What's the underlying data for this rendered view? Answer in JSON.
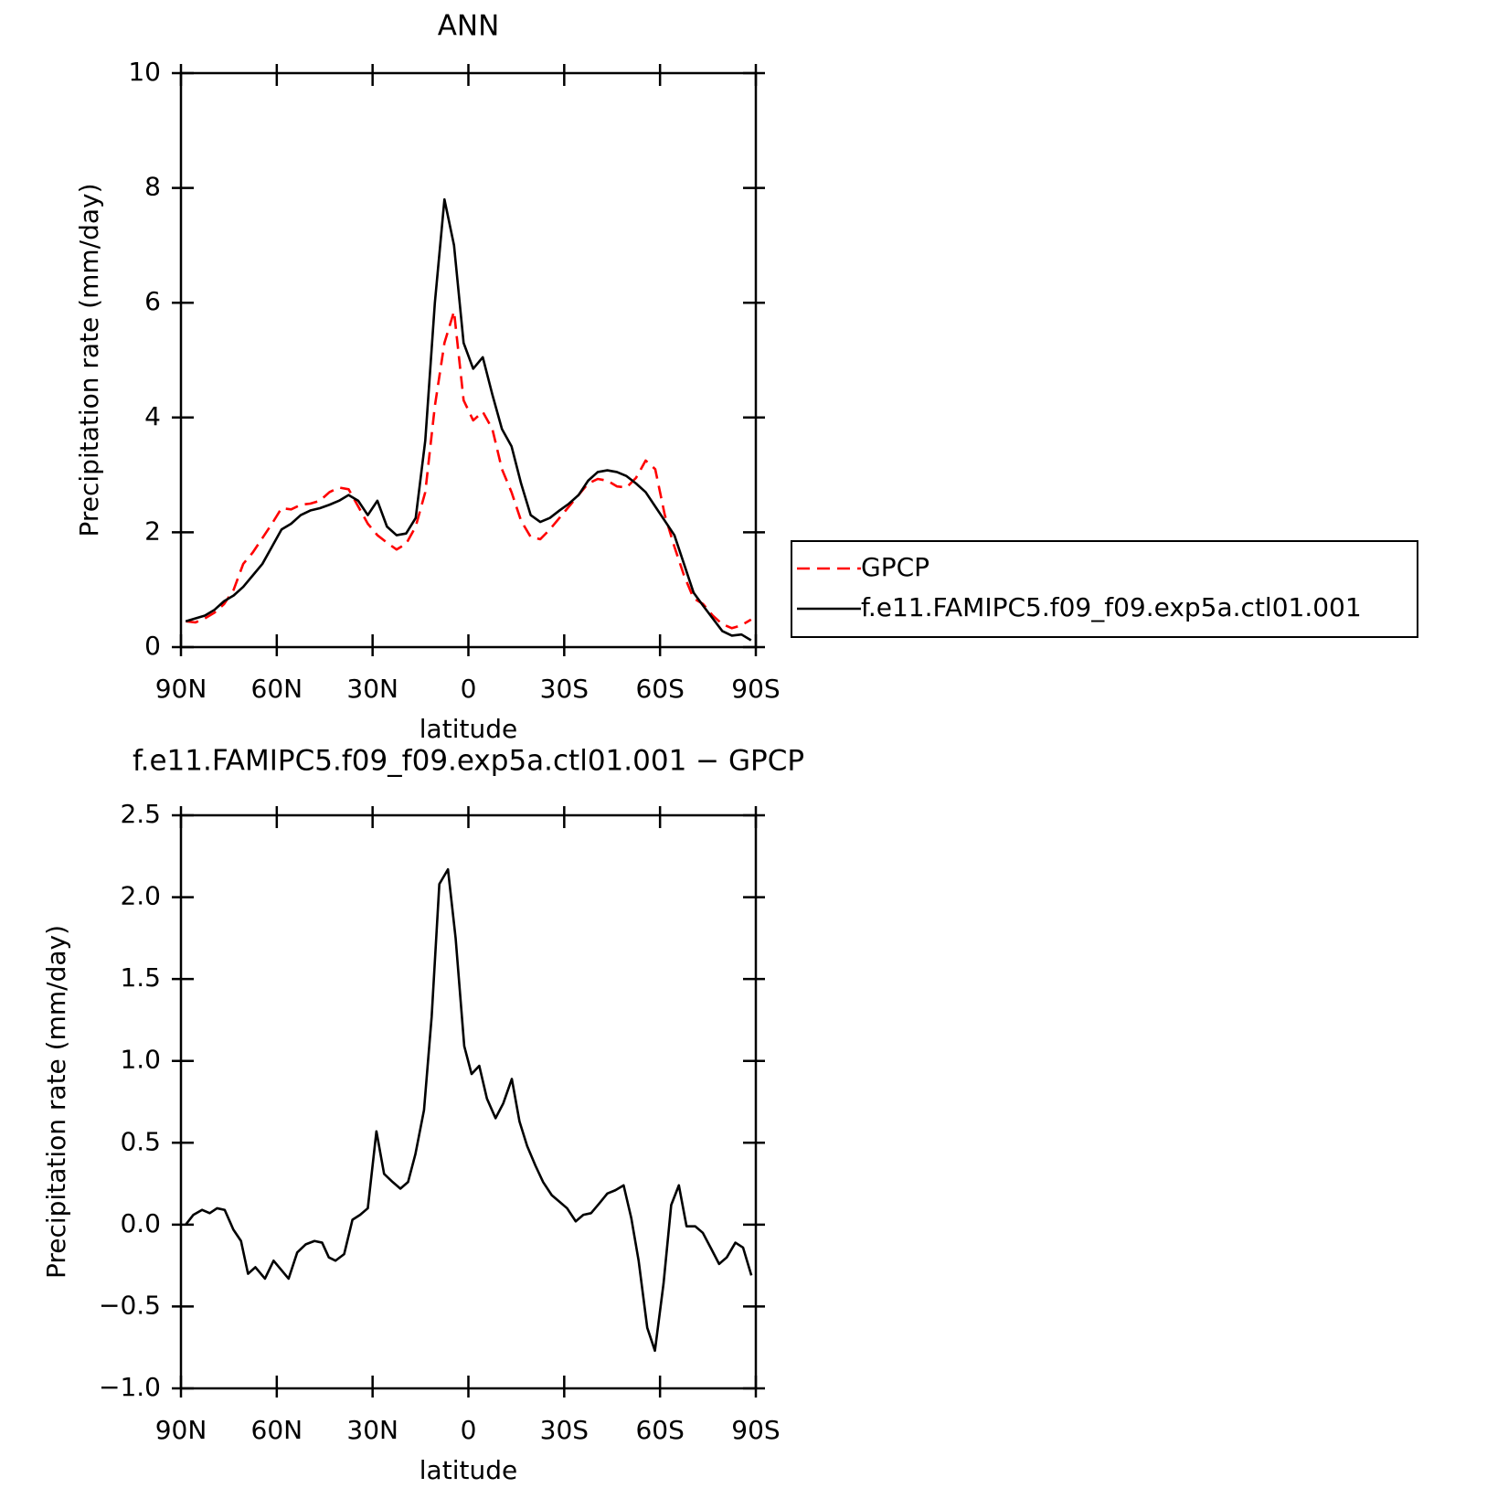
{
  "chart_data": [
    {
      "type": "line",
      "title": "ANN",
      "x_label": "latitude",
      "y_label": "Precipitation rate (mm/day)",
      "x": [
        88.5,
        85.5,
        82.5,
        79.5,
        76.5,
        73.5,
        70.5,
        67.5,
        64.5,
        61.5,
        58.5,
        55.5,
        52.5,
        49.5,
        46.5,
        43.5,
        40.5,
        37.5,
        34.5,
        31.5,
        28.5,
        25.5,
        22.5,
        19.5,
        16.5,
        13.5,
        10.5,
        7.5,
        4.5,
        1.5,
        -1.5,
        -4.5,
        -7.5,
        -10.5,
        -13.5,
        -16.5,
        -19.5,
        -22.5,
        -25.5,
        -28.5,
        -31.5,
        -34.5,
        -37.5,
        -40.5,
        -43.5,
        -46.5,
        -49.5,
        -52.5,
        -55.5,
        -58.5,
        -61.5,
        -64.5,
        -67.5,
        -70.5,
        -73.5,
        -76.5,
        -79.5,
        -82.5,
        -85.5,
        -88.5
      ],
      "series": [
        {
          "name": "GPCP",
          "color": "#ff0000",
          "line_style": "dashed",
          "values": [
            0.45,
            0.43,
            0.5,
            0.6,
            0.75,
            1.0,
            1.45,
            1.65,
            1.9,
            2.15,
            2.42,
            2.4,
            2.48,
            2.5,
            2.55,
            2.7,
            2.78,
            2.75,
            2.45,
            2.15,
            1.95,
            1.82,
            1.7,
            1.8,
            2.1,
            2.7,
            4.2,
            5.3,
            5.85,
            4.3,
            3.95,
            4.1,
            3.8,
            3.1,
            2.7,
            2.2,
            1.92,
            1.88,
            2.05,
            2.25,
            2.45,
            2.65,
            2.85,
            2.93,
            2.9,
            2.8,
            2.78,
            2.95,
            3.25,
            3.1,
            2.3,
            1.75,
            1.25,
            0.85,
            0.75,
            0.55,
            0.4,
            0.33,
            0.38,
            0.48
          ]
        },
        {
          "name": "f.e11.FAMIPC5.f09_f09.exp5a.ctl01.001",
          "color": "#000000",
          "line_style": "solid",
          "values": [
            0.45,
            0.5,
            0.55,
            0.65,
            0.8,
            0.9,
            1.05,
            1.25,
            1.45,
            1.75,
            2.05,
            2.15,
            2.3,
            2.38,
            2.42,
            2.48,
            2.55,
            2.65,
            2.55,
            2.3,
            2.55,
            2.1,
            1.95,
            1.98,
            2.25,
            3.6,
            6.0,
            7.8,
            7.0,
            5.3,
            4.85,
            5.05,
            4.4,
            3.8,
            3.5,
            2.85,
            2.3,
            2.18,
            2.25,
            2.38,
            2.5,
            2.65,
            2.9,
            3.05,
            3.08,
            3.05,
            2.98,
            2.85,
            2.7,
            2.45,
            2.2,
            1.95,
            1.45,
            0.95,
            0.72,
            0.5,
            0.28,
            0.2,
            0.22,
            0.12
          ]
        }
      ],
      "xlim": [
        90,
        -90
      ],
      "xticks": [
        {
          "value": 90,
          "label": "90N"
        },
        {
          "value": 60,
          "label": "60N"
        },
        {
          "value": 30,
          "label": "30N"
        },
        0,
        {
          "value": -30,
          "label": "30S"
        },
        {
          "value": -60,
          "label": "60S"
        },
        {
          "value": -90,
          "label": "90S"
        }
      ],
      "ylim": [
        0,
        10
      ],
      "yticks": [
        0,
        2,
        4,
        6,
        8,
        10
      ],
      "grid": false,
      "legend": "right"
    },
    {
      "type": "line",
      "title": "f.e11.FAMIPC5.f09_f09.exp5a.ctl01.001 − GPCP",
      "x_label": "latitude",
      "y_label": "Precipitation rate (mm/day)",
      "x": [
        88.5,
        86.1,
        83.4,
        81.0,
        78.7,
        76.3,
        73.6,
        71.2,
        69.0,
        66.7,
        63.7,
        61.0,
        56.3,
        53.6,
        50.9,
        48.2,
        45.8,
        43.7,
        41.6,
        38.9,
        36.3,
        33.9,
        31.5,
        28.8,
        26.4,
        23.7,
        21.3,
        18.9,
        16.6,
        13.9,
        11.5,
        9.1,
        6.4,
        4.0,
        1.3,
        -1.0,
        -3.4,
        -5.8,
        -8.5,
        -10.9,
        -13.6,
        -16.0,
        -18.4,
        -21.0,
        -23.4,
        -26.1,
        -28.5,
        -30.9,
        -33.6,
        -36.0,
        -38.4,
        -41.0,
        -43.5,
        -46.0,
        -48.6,
        -51.0,
        -53.3,
        -56.0,
        -58.4,
        -61.1,
        -63.5,
        -65.9,
        -68.3,
        -71.0,
        -73.4,
        -76.1,
        -78.5,
        -80.9,
        -83.6,
        -86.0,
        -88.6
      ],
      "values": [
        0.0,
        0.06,
        0.09,
        0.07,
        0.1,
        0.09,
        -0.03,
        -0.1,
        -0.3,
        -0.26,
        -0.33,
        -0.22,
        -0.33,
        -0.17,
        -0.12,
        -0.1,
        -0.11,
        -0.2,
        -0.22,
        -0.18,
        0.03,
        0.06,
        0.1,
        0.57,
        0.31,
        0.26,
        0.22,
        0.26,
        0.43,
        0.7,
        1.27,
        2.08,
        2.17,
        1.75,
        1.09,
        0.92,
        0.97,
        0.77,
        0.65,
        0.74,
        0.89,
        0.63,
        0.48,
        0.36,
        0.26,
        0.18,
        0.14,
        0.1,
        0.02,
        0.06,
        0.07,
        0.13,
        0.19,
        0.21,
        0.24,
        0.04,
        -0.22,
        -0.63,
        -0.77,
        -0.36,
        0.12,
        0.24,
        -0.01,
        -0.01,
        -0.05,
        -0.15,
        -0.24,
        -0.2,
        -0.11,
        -0.14,
        -0.31
      ],
      "color": "#000000",
      "xlim": [
        90,
        -90
      ],
      "xticks": [
        {
          "value": 90,
          "label": "90N"
        },
        {
          "value": 60,
          "label": "60N"
        },
        {
          "value": 30,
          "label": "30N"
        },
        0,
        {
          "value": -30,
          "label": "30S"
        },
        {
          "value": -60,
          "label": "60S"
        },
        {
          "value": -90,
          "label": "90S"
        }
      ],
      "ylim": [
        -1,
        2.5
      ],
      "yticks": [
        {
          "value": -1,
          "label": "−1.0"
        },
        {
          "value": -0.5,
          "label": "−0.5"
        },
        {
          "value": 0,
          "label": "0.0"
        },
        0.5,
        {
          "value": 1,
          "label": "1.0"
        },
        1.5,
        {
          "value": 2,
          "label": "2.0"
        },
        2.5
      ],
      "grid": false
    }
  ]
}
